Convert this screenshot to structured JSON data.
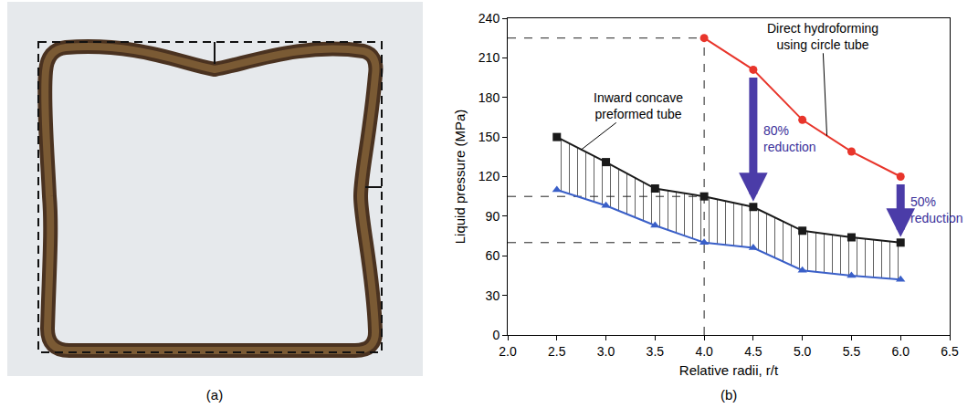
{
  "panel_a": {
    "label": "(a)"
  },
  "chart_data": {
    "type": "line",
    "panel_label": "(b)",
    "x_label": "Relative radii, r/t",
    "y_label": "Liquid pressure (MPa)",
    "xlim": [
      2.0,
      6.5
    ],
    "xticks": [
      {
        "value": 2,
        "label": "2.0"
      },
      {
        "value": 2.5,
        "label": "2.5"
      },
      {
        "value": 3,
        "label": "3.0"
      },
      {
        "value": 3.5,
        "label": "3.5"
      },
      {
        "value": 4,
        "label": "4.0"
      },
      {
        "value": 4.5,
        "label": "4.5"
      },
      {
        "value": 5,
        "label": "5.0"
      },
      {
        "value": 5.5,
        "label": "5.5"
      },
      {
        "value": 6,
        "label": "6.0"
      },
      {
        "value": 6.5,
        "label": "6.5"
      }
    ],
    "ylim": [
      0,
      240
    ],
    "yticks": [
      0,
      30,
      60,
      90,
      120,
      150,
      180,
      210,
      240
    ],
    "grid": false,
    "series": [
      {
        "color": "#e8352b",
        "marker": "circle",
        "line_style": "solid",
        "x": [
          4.0,
          4.5,
          5.0,
          5.5,
          6.0
        ],
        "values": [
          225,
          201,
          163,
          139,
          120
        ]
      },
      {
        "color": "#1a1a1a",
        "marker": "square",
        "line_style": "solid",
        "x": [
          2.5,
          3.0,
          3.5,
          4.0,
          4.5,
          5.0,
          5.5,
          6.0
        ],
        "values": [
          150,
          131,
          111,
          105,
          97,
          79,
          74,
          70
        ]
      },
      {
        "color": "#3a5fc8",
        "marker": "triangle-up",
        "line_style": "solid",
        "x": [
          2.5,
          3.0,
          3.5,
          4.0,
          4.5,
          5.0,
          5.5,
          6.0
        ],
        "values": [
          110,
          98,
          83,
          70,
          66,
          49,
          45,
          42
        ]
      }
    ],
    "annotations": [
      {
        "text": [
          "Direct hydroforming",
          "using circle tube"
        ]
      },
      {
        "text": [
          "Inward concave",
          "preformed tube"
        ]
      },
      {
        "text": [
          "80%",
          "reduction"
        ],
        "x": 4.5
      },
      {
        "text": [
          "50%",
          "reduction"
        ],
        "x": 6.0
      }
    ]
  }
}
